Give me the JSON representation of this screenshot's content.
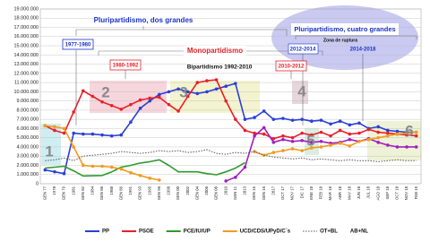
{
  "chart_data": {
    "type": "line",
    "categories": [
      "GEN 77",
      "1978",
      "GEN 79",
      "1981",
      "GEN 82",
      "1984",
      "GEN 86",
      "1988",
      "GEN 89",
      "1991",
      "GEN 93",
      "1995",
      "GEN 96",
      "1998",
      "GEN 00",
      "2002",
      "GEN 04",
      "2006",
      "GEN 08",
      "2010",
      "GEN 11",
      "2013",
      "GEN 15",
      "GEN 16",
      "2017",
      "OCT 17",
      "NOV 17",
      "DIC 17",
      "ENE 18",
      "FEB 18",
      "MAR 18",
      "ABR 18",
      "MAY 18",
      "JUN 18",
      "JUL 18",
      "AGO 18",
      "SEP 18",
      "OCT 18",
      "NOV 18",
      "FEB 19"
    ],
    "series": [
      {
        "name": "PP",
        "color": "#2b3fd6",
        "marker": true,
        "values": [
          1500000,
          1300000,
          1100000,
          5500000,
          5400000,
          5400000,
          5300000,
          5200000,
          5300000,
          6700000,
          8200000,
          9000000,
          9700000,
          10000000,
          10300000,
          10000000,
          9800000,
          10000000,
          10300000,
          10600000,
          10900000,
          7000000,
          7200000,
          7900000,
          7000000,
          7100000,
          6900000,
          7000000,
          6800000,
          6900000,
          6500000,
          6800000,
          6400000,
          6600000,
          6000000,
          6200000,
          5800000,
          5700000,
          5600000,
          5600000
        ]
      },
      {
        "name": "PSOE",
        "color": "#e8202a",
        "marker": true,
        "values": [
          6300000,
          5800000,
          5500000,
          7800000,
          10100000,
          9500000,
          8900000,
          8500000,
          8100000,
          8600000,
          9100000,
          9300000,
          9400000,
          8600000,
          7900000,
          9500000,
          11000000,
          11200000,
          11300000,
          9000000,
          7000000,
          5800000,
          5500000,
          5400000,
          4900000,
          5200000,
          5000000,
          5500000,
          5300000,
          5600000,
          5200000,
          5800000,
          5400000,
          5500000,
          5900000,
          5600000,
          5500000,
          5400000,
          5300000,
          5200000
        ]
      },
      {
        "name": "PCE/IU/UP",
        "color": "#2e9a2e",
        "marker": false,
        "values": [
          1700000,
          1800000,
          1900000,
          1400000,
          850000,
          870000,
          900000,
          1300000,
          1800000,
          2000000,
          2250000,
          2400000,
          2600000,
          2000000,
          1300000,
          1300000,
          1300000,
          1100000,
          970000,
          1300000,
          1700000,
          2300000,
          null,
          null,
          null,
          null,
          null,
          null,
          null,
          null,
          null,
          null,
          null,
          null,
          null,
          null,
          null,
          null,
          null,
          null
        ]
      },
      {
        "color": "#a020c0",
        "marker": true,
        "values": [
          null,
          null,
          null,
          null,
          null,
          null,
          null,
          null,
          null,
          null,
          null,
          null,
          null,
          null,
          null,
          null,
          null,
          null,
          null,
          300000,
          700000,
          1800000,
          5200000,
          6100000,
          4500000,
          4800000,
          4600000,
          4700000,
          4500000,
          4600000,
          4400000,
          4500000,
          4800000,
          4600000,
          4900000,
          4500000,
          4200000,
          4000000,
          4000000,
          4000000
        ]
      },
      {
        "name": "UCD/CDS/UPyD/C´s",
        "color": "#f39a1e",
        "marker": true,
        "values": [
          6300000,
          6200000,
          6000000,
          4000000,
          2000000,
          1900000,
          1900000,
          1800000,
          1600000,
          1200000,
          900000,
          600000,
          400000,
          null,
          null,
          null,
          null,
          null,
          null,
          null,
          null,
          null,
          3500000,
          3100000,
          3400000,
          3600000,
          3800000,
          3600000,
          3900000,
          4000000,
          4200000,
          4400000,
          4100000,
          4600000,
          4800000,
          5000000,
          5200000,
          5400000,
          5500000,
          5600000
        ]
      },
      {
        "name": "OT+BL",
        "color": "#555555",
        "dash": true,
        "marker": false,
        "values": [
          2500000,
          2600000,
          2800000,
          2500000,
          3000000,
          3100000,
          3200000,
          3300000,
          3500000,
          3400000,
          3300000,
          3400000,
          3600000,
          3500000,
          3600000,
          3400000,
          3500000,
          3700000,
          3300000,
          3200000,
          3400000,
          3300000,
          3500000,
          3100000,
          2900000,
          2800000,
          2700000,
          2800000,
          2600000,
          2700000,
          2600000,
          2500000,
          2600000,
          2500000,
          2500000,
          2400000,
          2500000,
          2600000,
          2500000,
          2500000
        ]
      }
    ],
    "legend_extra": "AB+NL",
    "ylim": [
      0,
      19000000
    ],
    "yticks": [
      0,
      {
        "value": 1000000,
        "label": "1.000.000"
      },
      {
        "value": 2000000,
        "label": "2.000.000"
      },
      {
        "value": 3000000,
        "label": "3.000.000"
      },
      {
        "value": 4000000,
        "label": "4.000.000"
      },
      {
        "value": 5000000,
        "label": "5.000.000"
      },
      {
        "value": 6000000,
        "label": "6.000.000"
      },
      {
        "value": 7000000,
        "label": "7.000.000"
      },
      {
        "value": 8000000,
        "label": "8.000.000"
      },
      {
        "value": 9000000,
        "label": "9.000.000"
      },
      {
        "value": 10000000,
        "label": "10.000.000"
      },
      {
        "value": 11000000,
        "label": "11.000.000"
      },
      {
        "value": 12000000,
        "label": "12.000.000"
      },
      {
        "value": 13000000,
        "label": "13.000.000"
      },
      {
        "value": 14000000,
        "label": "14.000.000"
      },
      {
        "value": 15000000,
        "label": "15.000.000"
      },
      {
        "value": 16000000,
        "label": "16.000.000"
      },
      {
        "value": 17000000,
        "label": "17.000.000"
      },
      {
        "value": 18000000,
        "label": "18.000.000"
      },
      {
        "value": 19000000,
        "label": "19.000.000"
      }
    ],
    "grid": true,
    "annotations": [
      "Pluripartidismo,  dos grandes",
      "Pluripartidismo, cuatro grandes",
      "Monopartidismo",
      "1977-1980",
      "1980-1992",
      "Bipartidismo  1992-2010",
      "2010-2012",
      "2012-2014",
      "Zona de ruptura",
      "2014-2018",
      "1",
      "2",
      "3",
      "4",
      "5",
      "6"
    ]
  }
}
